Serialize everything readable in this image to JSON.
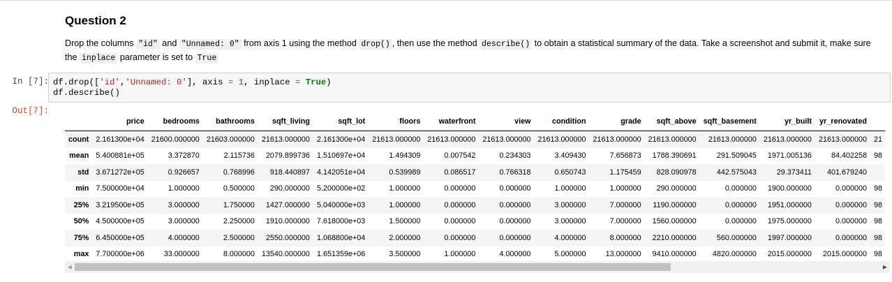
{
  "markdown": {
    "heading": "Question 2",
    "p1": "Drop the columns ",
    "code_id": "\"id\"",
    "p2": " and ",
    "code_unnamed": "\"Unnamed: 0\"",
    "p3": " from axis 1 using the method ",
    "code_drop": "drop()",
    "p4": ", then use the method ",
    "code_describe": "describe()",
    "p5": " to obtain a statistical summary of the data. Take a screenshot and submit it, make sure the ",
    "code_inplace": "inplace",
    "p6": " parameter is set to ",
    "code_true": "True"
  },
  "cell": {
    "in_prompt": "In [7]:",
    "out_prompt": "Out[7]:",
    "code": {
      "a": "df.drop([",
      "b": "'id'",
      "c": ",",
      "d": "'Unnamed: 0'",
      "e": "], axis ",
      "f": "=",
      "g": " ",
      "h": "1",
      "i": ", inplace ",
      "j": "=",
      "k": " ",
      "l": "True",
      "m": ")",
      "line2": "df.describe()"
    }
  },
  "table": {
    "columns": [
      "price",
      "bedrooms",
      "bathrooms",
      "sqft_living",
      "sqft_lot",
      "floors",
      "waterfront",
      "view",
      "condition",
      "grade",
      "sqft_above",
      "sqft_basement",
      "yr_built",
      "yr_renovated",
      ""
    ],
    "rows": [
      {
        "label": "count",
        "values": [
          "2.161300e+04",
          "21600.000000",
          "21603.000000",
          "21613.000000",
          "2.161300e+04",
          "21613.000000",
          "21613.000000",
          "21613.000000",
          "21613.000000",
          "21613.000000",
          "21613.000000",
          "21613.000000",
          "21613.000000",
          "21613.000000",
          "21"
        ]
      },
      {
        "label": "mean",
        "values": [
          "5.400881e+05",
          "3.372870",
          "2.115736",
          "2079.899736",
          "1.510697e+04",
          "1.494309",
          "0.007542",
          "0.234303",
          "3.409430",
          "7.656873",
          "1788.390691",
          "291.509045",
          "1971.005136",
          "84.402258",
          "98"
        ]
      },
      {
        "label": "std",
        "values": [
          "3.671272e+05",
          "0.926657",
          "0.768996",
          "918.440897",
          "4.142051e+04",
          "0.539989",
          "0.086517",
          "0.766318",
          "0.650743",
          "1.175459",
          "828.090978",
          "442.575043",
          "29.373411",
          "401.679240",
          ""
        ]
      },
      {
        "label": "min",
        "values": [
          "7.500000e+04",
          "1.000000",
          "0.500000",
          "290.000000",
          "5.200000e+02",
          "1.000000",
          "0.000000",
          "0.000000",
          "1.000000",
          "1.000000",
          "290.000000",
          "0.000000",
          "1900.000000",
          "0.000000",
          "98"
        ]
      },
      {
        "label": "25%",
        "values": [
          "3.219500e+05",
          "3.000000",
          "1.750000",
          "1427.000000",
          "5.040000e+03",
          "1.000000",
          "0.000000",
          "0.000000",
          "3.000000",
          "7.000000",
          "1190.000000",
          "0.000000",
          "1951.000000",
          "0.000000",
          "98"
        ]
      },
      {
        "label": "50%",
        "values": [
          "4.500000e+05",
          "3.000000",
          "2.250000",
          "1910.000000",
          "7.618000e+03",
          "1.500000",
          "0.000000",
          "0.000000",
          "3.000000",
          "7.000000",
          "1560.000000",
          "0.000000",
          "1975.000000",
          "0.000000",
          "98"
        ]
      },
      {
        "label": "75%",
        "values": [
          "6.450000e+05",
          "4.000000",
          "2.500000",
          "2550.000000",
          "1.068800e+04",
          "2.000000",
          "0.000000",
          "0.000000",
          "4.000000",
          "8.000000",
          "2210.000000",
          "560.000000",
          "1997.000000",
          "0.000000",
          "98"
        ]
      },
      {
        "label": "max",
        "values": [
          "7.700000e+06",
          "33.000000",
          "8.000000",
          "13540.000000",
          "1.651359e+06",
          "3.500000",
          "1.000000",
          "4.000000",
          "5.000000",
          "13.000000",
          "9410.000000",
          "4820.000000",
          "2015.000000",
          "2015.000000",
          "98"
        ]
      }
    ]
  },
  "scrollbar": {
    "left_arrow": "◀",
    "right_arrow": "▶",
    "position_fraction": 0.0,
    "visible_fraction": 0.74
  }
}
